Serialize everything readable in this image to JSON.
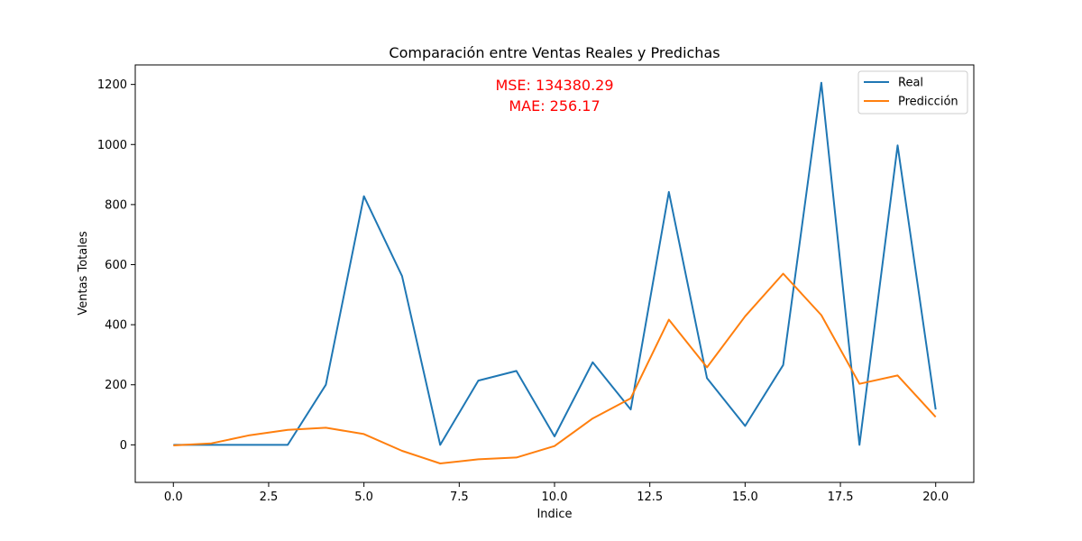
{
  "chart_data": {
    "type": "line",
    "title": "Comparación entre Ventas Reales y Predichas",
    "xlabel": "Indice",
    "ylabel": "Ventas Totales",
    "xlim": [
      -1.0,
      21.0
    ],
    "ylim": [
      -125,
      1265
    ],
    "xticks": [
      "0.0",
      "2.5",
      "5.0",
      "7.5",
      "10.0",
      "12.5",
      "15.0",
      "17.5",
      "20.0"
    ],
    "xtick_values": [
      0,
      2.5,
      5,
      7.5,
      10,
      12.5,
      15,
      17.5,
      20
    ],
    "yticks": [
      "0",
      "200",
      "400",
      "600",
      "800",
      "1000",
      "1200"
    ],
    "ytick_values": [
      0,
      200,
      400,
      600,
      800,
      1000,
      1200
    ],
    "grid": false,
    "legend_position": "top-right",
    "x": [
      0,
      1,
      2,
      3,
      4,
      5,
      6,
      7,
      8,
      9,
      10,
      11,
      12,
      13,
      14,
      15,
      16,
      17,
      18,
      19,
      20
    ],
    "series": [
      {
        "name": "Real",
        "color": "#1f77b4",
        "values": [
          0,
          0,
          0,
          0,
          200,
          828,
          562,
          0,
          214,
          246,
          28,
          275,
          118,
          842,
          222,
          63,
          266,
          1206,
          0,
          997,
          118
        ]
      },
      {
        "name": "Predicción",
        "color": "#ff7f0e",
        "values": [
          -2,
          5,
          32,
          50,
          57,
          36,
          -20,
          -62,
          -48,
          -42,
          -4,
          88,
          155,
          417,
          258,
          428,
          570,
          432,
          203,
          231,
          93
        ]
      }
    ],
    "annotations": [
      {
        "text": "MSE: 134380.29",
        "color": "#ff0000"
      },
      {
        "text": "MAE: 256.17",
        "color": "#ff0000"
      }
    ]
  }
}
